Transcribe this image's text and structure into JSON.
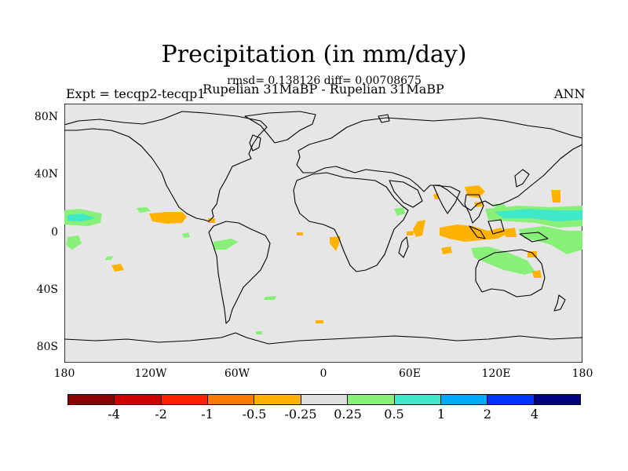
{
  "title": "Precipitation (in mm/day)",
  "stats": "rmsd= 0.138126 diff= 0.00708675",
  "subtitle": "Rupelian  31MaBP - Rupelian  31MaBP",
  "expt": "Expt = tecqp2-tecqp1",
  "season": "ANN",
  "lat_ticks": [
    "80N",
    "40N",
    "0",
    "40S",
    "80S"
  ],
  "lon_ticks": [
    "180",
    "120W",
    "60W",
    "0",
    "60E",
    "120E",
    "180"
  ],
  "colorbar": {
    "colors": [
      "#8B0000",
      "#CC0000",
      "#FF2200",
      "#FF7A00",
      "#FFB300",
      "#DEDEDE",
      "#88F078",
      "#3FE8C8",
      "#00AAFF",
      "#0033FF",
      "#000080"
    ],
    "labels": [
      "-4",
      "-2",
      "-1",
      "-0.5",
      "-0.25",
      "0.25",
      "0.5",
      "1",
      "2",
      "4"
    ]
  },
  "map_colors": {
    "ocean": "#E6E6E6",
    "coast": "#000000",
    "decrease": "#FFB300",
    "increase_small": "#88F078",
    "increase_mid": "#3FE8C8"
  }
}
